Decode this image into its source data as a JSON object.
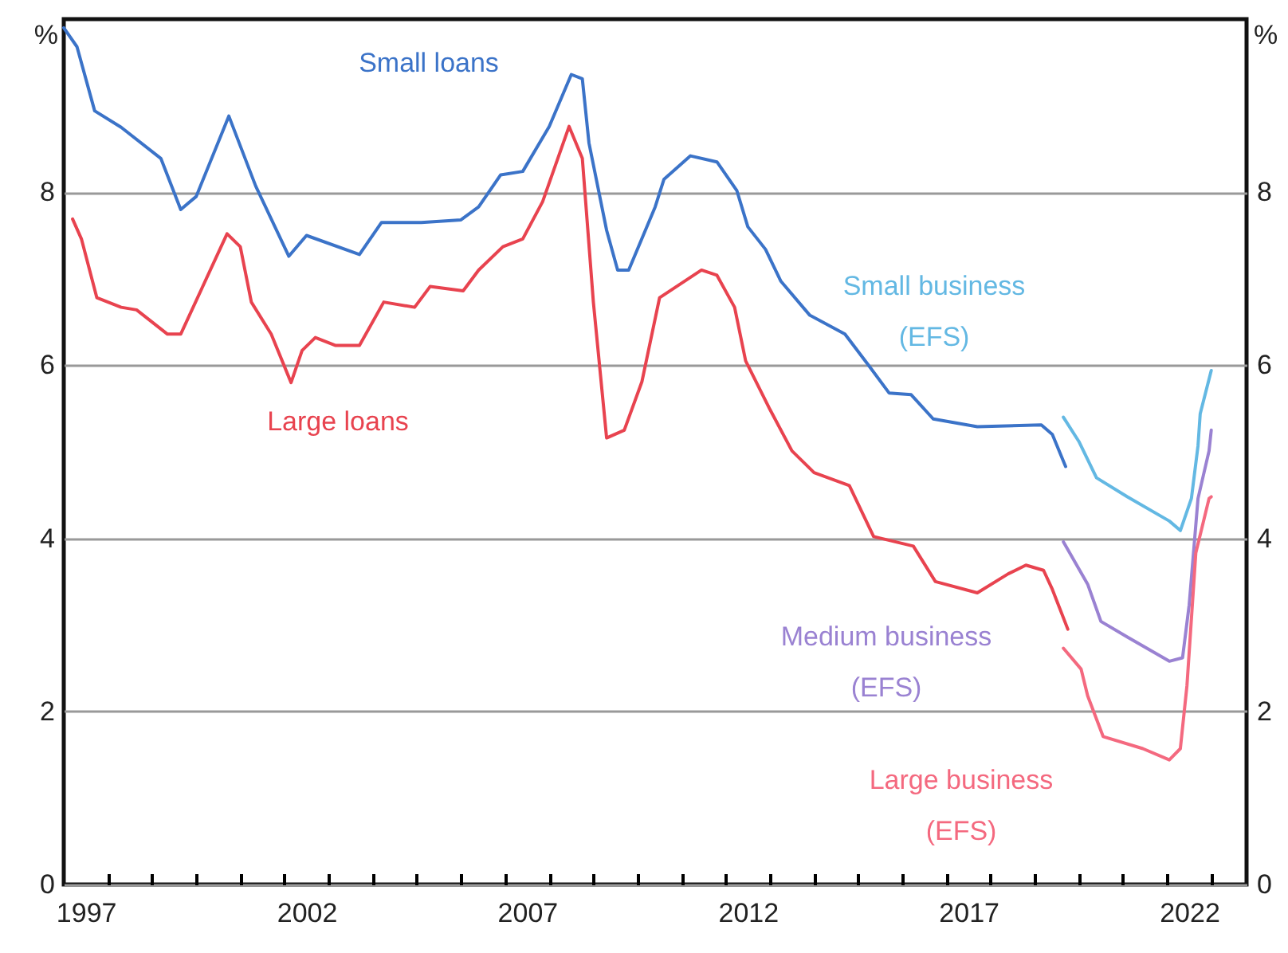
{
  "chart_data": {
    "type": "line",
    "ylabel": "%",
    "y2label": "%",
    "xlim": [
      1997,
      2023.8
    ],
    "xticks": [
      {
        "value": 1997.5,
        "label": "1997"
      },
      {
        "value": 1998,
        "label": null
      },
      {
        "value": 1999,
        "label": null
      },
      {
        "value": 2000,
        "label": null
      },
      {
        "value": 2001,
        "label": null
      },
      {
        "value": 2002,
        "label": null
      },
      {
        "value": 2002.5,
        "label": "2002"
      },
      {
        "value": 2003,
        "label": null
      },
      {
        "value": 2004,
        "label": null
      },
      {
        "value": 2005,
        "label": null
      },
      {
        "value": 2006,
        "label": null
      },
      {
        "value": 2007,
        "label": null
      },
      {
        "value": 2007.5,
        "label": "2007"
      },
      {
        "value": 2008,
        "label": null
      },
      {
        "value": 2009,
        "label": null
      },
      {
        "value": 2010,
        "label": null
      },
      {
        "value": 2011,
        "label": null
      },
      {
        "value": 2012,
        "label": null
      },
      {
        "value": 2012.5,
        "label": "2012"
      },
      {
        "value": 2013,
        "label": null
      },
      {
        "value": 2014,
        "label": null
      },
      {
        "value": 2015,
        "label": null
      },
      {
        "value": 2016,
        "label": null
      },
      {
        "value": 2017,
        "label": null
      },
      {
        "value": 2017.5,
        "label": "2017"
      },
      {
        "value": 2018,
        "label": null
      },
      {
        "value": 2019,
        "label": null
      },
      {
        "value": 2020,
        "label": null
      },
      {
        "value": 2021,
        "label": null
      },
      {
        "value": 2022,
        "label": null
      },
      {
        "value": 2022.5,
        "label": "2022"
      },
      {
        "value": 2023,
        "label": null
      }
    ],
    "ylim": [
      0,
      10
    ],
    "yticks": [
      0,
      2,
      4,
      6,
      8
    ],
    "y2lim": [
      0,
      10
    ],
    "y2ticks": [
      0,
      2,
      4,
      6,
      8
    ],
    "grid": "y",
    "line_style": "solid",
    "marker": "none",
    "series": [
      {
        "name": "Small loans",
        "color": "#3b73c8",
        "x": [
          1997.0,
          1997.3,
          1997.7,
          1998.3,
          1999.2,
          1999.65,
          2000.0,
          2000.74,
          2001.35,
          2002.1,
          2002.5,
          2003.7,
          2004.2,
          2005.1,
          2006.0,
          2006.4,
          2006.9,
          2007.4,
          2008.0,
          2008.5,
          2008.75,
          2008.9,
          2009.3,
          2009.55,
          2009.8,
          2010.4,
          2010.6,
          2011.2,
          2011.8,
          2012.25,
          2012.5,
          2012.9,
          2013.25,
          2013.9,
          2014.7,
          2015.25,
          2015.7,
          2016.2,
          2016.7,
          2017.7,
          2019.15,
          2019.4,
          2019.7
        ],
        "values": [
          9.9,
          9.68,
          8.94,
          8.75,
          8.39,
          7.8,
          7.95,
          8.88,
          8.07,
          7.26,
          7.5,
          7.28,
          7.65,
          7.65,
          7.68,
          7.83,
          8.2,
          8.24,
          8.76,
          9.36,
          9.31,
          8.57,
          7.56,
          7.1,
          7.1,
          7.83,
          8.15,
          8.42,
          8.35,
          8.02,
          7.6,
          7.34,
          6.97,
          6.58,
          6.36,
          5.99,
          5.68,
          5.66,
          5.38,
          5.29,
          5.31,
          5.2,
          4.83
        ]
      },
      {
        "name": "Large loans",
        "color": "#e8434f",
        "x": [
          1997.2,
          1997.4,
          1997.75,
          1998.3,
          1998.65,
          1999.35,
          1999.65,
          2000.7,
          2001.0,
          2001.25,
          2001.7,
          2002.15,
          2002.4,
          2002.7,
          2003.15,
          2003.7,
          2004.25,
          2004.95,
          2005.3,
          2006.05,
          2006.4,
          2006.95,
          2007.4,
          2007.85,
          2008.45,
          2008.75,
          2009.0,
          2009.3,
          2009.7,
          2010.1,
          2010.5,
          2011.45,
          2011.8,
          2012.2,
          2012.45,
          2013.0,
          2013.5,
          2014.0,
          2014.8,
          2015.35,
          2016.25,
          2016.75,
          2017.7,
          2018.4,
          2018.8,
          2019.2,
          2019.4,
          2019.75
        ],
        "values": [
          7.69,
          7.46,
          6.78,
          6.67,
          6.64,
          6.36,
          6.36,
          7.52,
          7.37,
          6.73,
          6.36,
          5.8,
          6.17,
          6.32,
          6.23,
          6.23,
          6.73,
          6.67,
          6.91,
          6.86,
          7.1,
          7.37,
          7.46,
          7.89,
          8.76,
          8.39,
          6.73,
          5.16,
          5.25,
          5.81,
          6.78,
          7.1,
          7.04,
          6.67,
          6.05,
          5.49,
          5.01,
          4.76,
          4.61,
          4.02,
          3.91,
          3.5,
          3.37,
          3.59,
          3.69,
          3.63,
          3.41,
          2.95
        ]
      },
      {
        "name": "Small business (EFS)",
        "color": "#63b8e3",
        "x": [
          2019.65,
          2020.0,
          2020.4,
          2021.1,
          2022.05,
          2022.3,
          2022.55,
          2022.7,
          2022.75,
          2023.0
        ],
        "values": [
          5.4,
          5.12,
          4.7,
          4.48,
          4.2,
          4.09,
          4.46,
          5.07,
          5.44,
          5.94
        ]
      },
      {
        "name": "Medium business (EFS)",
        "color": "#9a82d2",
        "x": [
          2019.65,
          2020.2,
          2020.5,
          2021.1,
          2022.05,
          2022.35,
          2022.5,
          2022.7,
          2022.95,
          2023.0
        ],
        "values": [
          3.96,
          3.47,
          3.04,
          2.86,
          2.58,
          2.62,
          3.23,
          4.46,
          5.01,
          5.25
        ]
      },
      {
        "name": "Large business (EFS)",
        "color": "#f4697f",
        "x": [
          2019.65,
          2020.05,
          2020.2,
          2020.55,
          2021.45,
          2022.05,
          2022.3,
          2022.45,
          2022.65,
          2022.95,
          2023.0
        ],
        "values": [
          2.73,
          2.49,
          2.18,
          1.71,
          1.57,
          1.44,
          1.57,
          2.3,
          3.83,
          4.46,
          4.48
        ]
      }
    ]
  }
}
